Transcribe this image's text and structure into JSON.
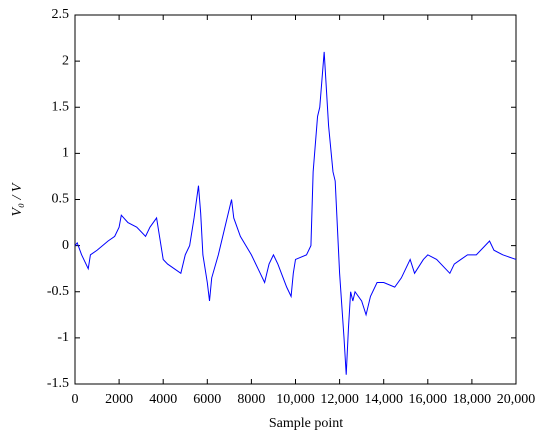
{
  "chart_data": {
    "type": "line",
    "xlabel": "Sample point",
    "ylabel": "V₀ / V",
    "x": [
      0,
      100,
      300,
      600,
      700,
      1000,
      1500,
      1800,
      2000,
      2100,
      2400,
      2800,
      3200,
      3400,
      3700,
      3800,
      4000,
      4200,
      4500,
      4800,
      5000,
      5200,
      5400,
      5600,
      5700,
      5800,
      6000,
      6100,
      6200,
      6500,
      6800,
      7100,
      7200,
      7500,
      8000,
      8300,
      8600,
      8700,
      8800,
      9000,
      9200,
      9600,
      9800,
      9900,
      10000,
      10500,
      10700,
      10800,
      11000,
      11100,
      11300,
      11500,
      11700,
      11800,
      12000,
      12200,
      12300,
      12400,
      12500,
      12600,
      12700,
      13000,
      13200,
      13400,
      13700,
      14000,
      14500,
      14800,
      15000,
      15200,
      15400,
      15800,
      16000,
      16400,
      16800,
      17000,
      17200,
      17500,
      17800,
      18200,
      18600,
      18800,
      19000,
      19400,
      20000
    ],
    "series": [
      {
        "color": "#0000ff",
        "values": [
          0.0,
          0.03,
          -0.1,
          -0.25,
          -0.1,
          -0.05,
          0.05,
          0.1,
          0.2,
          0.33,
          0.25,
          0.2,
          0.1,
          0.2,
          0.3,
          0.15,
          -0.15,
          -0.2,
          -0.25,
          -0.3,
          -0.1,
          0.0,
          0.3,
          0.65,
          0.35,
          -0.1,
          -0.4,
          -0.6,
          -0.35,
          -0.1,
          0.2,
          0.5,
          0.3,
          0.1,
          -0.1,
          -0.25,
          -0.4,
          -0.3,
          -0.2,
          -0.1,
          -0.2,
          -0.45,
          -0.55,
          -0.3,
          -0.15,
          -0.1,
          0.0,
          0.8,
          1.4,
          1.5,
          2.1,
          1.3,
          0.8,
          0.7,
          -0.3,
          -1.0,
          -1.4,
          -0.9,
          -0.5,
          -0.6,
          -0.5,
          -0.6,
          -0.75,
          -0.55,
          -0.4,
          -0.4,
          -0.45,
          -0.35,
          -0.25,
          -0.15,
          -0.3,
          -0.15,
          -0.1,
          -0.15,
          -0.25,
          -0.3,
          -0.2,
          -0.15,
          -0.1,
          -0.1,
          0.0,
          0.05,
          -0.05,
          -0.1,
          -0.15
        ]
      }
    ],
    "xlim": [
      0,
      20000
    ],
    "xticks": [
      0,
      2000,
      4000,
      6000,
      8000,
      {
        "value": 10000,
        "label": "10,000"
      },
      {
        "value": 12000,
        "label": "12,000"
      },
      {
        "value": 14000,
        "label": "14,000"
      },
      {
        "value": 16000,
        "label": "16,000"
      },
      {
        "value": 18000,
        "label": "18,000"
      },
      {
        "value": 20000,
        "label": "20,000"
      }
    ],
    "ylim": [
      -1.5,
      2.5
    ],
    "yticks": [
      -1.5,
      -1,
      -0.5,
      0,
      0.5,
      1,
      1.5,
      2,
      2.5
    ]
  }
}
